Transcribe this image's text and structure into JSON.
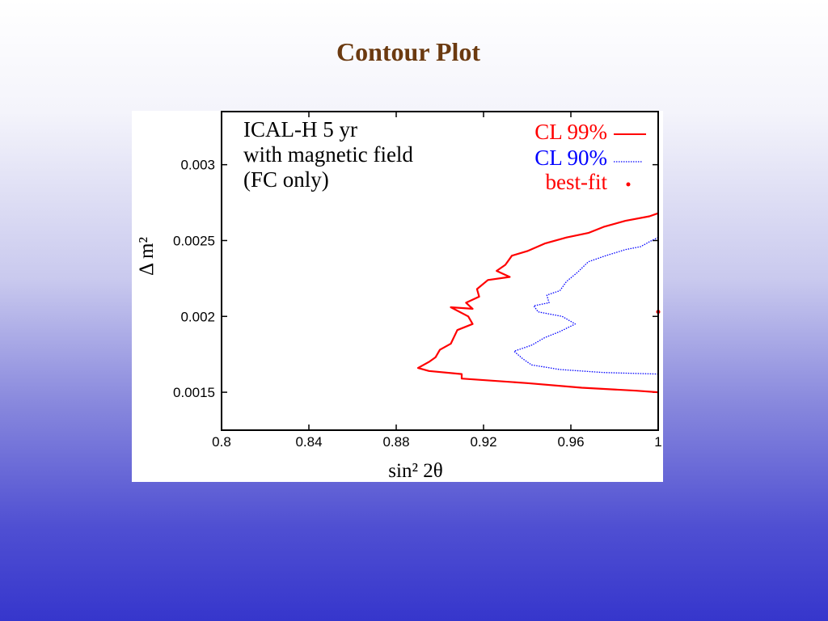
{
  "slide": {
    "title": "Contour Plot"
  },
  "chart_data": {
    "type": "contour",
    "annotation": [
      "ICAL-H 5 yr",
      "with magnetic field",
      "(FC only)"
    ],
    "xlabel": "sin² 2θ",
    "ylabel": "Δ m²",
    "xlim": [
      0.8,
      1.0
    ],
    "ylim": [
      0.00125,
      0.00335
    ],
    "x_ticks": [
      0.8,
      0.84,
      0.88,
      0.92,
      0.96,
      1.0
    ],
    "x_tick_labels": [
      "0.8",
      "0.84",
      "0.88",
      "0.92",
      "0.96",
      "1"
    ],
    "y_ticks": [
      0.0015,
      0.002,
      0.0025,
      0.003
    ],
    "y_tick_labels": [
      "0.0015",
      "0.002",
      "0.0025",
      "0.003"
    ],
    "grid": false,
    "legend_position": "top-right",
    "series": [
      {
        "name": "CL 99%",
        "color": "#ff0000",
        "style": "solid",
        "points": [
          [
            1.0,
            0.00268
          ],
          [
            0.996,
            0.00266
          ],
          [
            0.985,
            0.00263
          ],
          [
            0.975,
            0.00259
          ],
          [
            0.968,
            0.00255
          ],
          [
            0.958,
            0.00252
          ],
          [
            0.948,
            0.00248
          ],
          [
            0.94,
            0.00243
          ],
          [
            0.933,
            0.0024
          ],
          [
            0.93,
            0.00234
          ],
          [
            0.926,
            0.0023
          ],
          [
            0.932,
            0.00226
          ],
          [
            0.922,
            0.00224
          ],
          [
            0.917,
            0.00218
          ],
          [
            0.918,
            0.00213
          ],
          [
            0.912,
            0.00209
          ],
          [
            0.915,
            0.00205
          ],
          [
            0.905,
            0.00206
          ],
          [
            0.913,
            0.002
          ],
          [
            0.915,
            0.00195
          ],
          [
            0.908,
            0.00191
          ],
          [
            0.905,
            0.00182
          ],
          [
            0.9,
            0.00178
          ],
          [
            0.898,
            0.00173
          ],
          [
            0.895,
            0.0017
          ],
          [
            0.89,
            0.00166
          ],
          [
            0.895,
            0.00164
          ],
          [
            0.91,
            0.00162
          ],
          [
            0.91,
            0.00159
          ],
          [
            0.94,
            0.00156
          ],
          [
            0.965,
            0.00153
          ],
          [
            0.99,
            0.00151
          ],
          [
            1.0,
            0.0015
          ]
        ]
      },
      {
        "name": "CL 90%",
        "color": "#0000ff",
        "style": "dotted",
        "points": [
          [
            1.0,
            0.00252
          ],
          [
            0.997,
            0.0025
          ],
          [
            0.992,
            0.00246
          ],
          [
            0.985,
            0.00244
          ],
          [
            0.976,
            0.0024
          ],
          [
            0.968,
            0.00236
          ],
          [
            0.963,
            0.00229
          ],
          [
            0.958,
            0.00223
          ],
          [
            0.955,
            0.00217
          ],
          [
            0.949,
            0.00214
          ],
          [
            0.95,
            0.00209
          ],
          [
            0.943,
            0.00207
          ],
          [
            0.945,
            0.00203
          ],
          [
            0.956,
            0.002
          ],
          [
            0.962,
            0.00195
          ],
          [
            0.955,
            0.0019
          ],
          [
            0.948,
            0.00186
          ],
          [
            0.942,
            0.00181
          ],
          [
            0.934,
            0.00177
          ],
          [
            0.938,
            0.00172
          ],
          [
            0.942,
            0.00168
          ],
          [
            0.955,
            0.00165
          ],
          [
            0.975,
            0.00163
          ],
          [
            1.0,
            0.00162
          ]
        ]
      },
      {
        "name": "best-fit",
        "color": "#ff0000",
        "style": "point",
        "points": [
          [
            1.0,
            0.00203
          ]
        ]
      }
    ]
  }
}
